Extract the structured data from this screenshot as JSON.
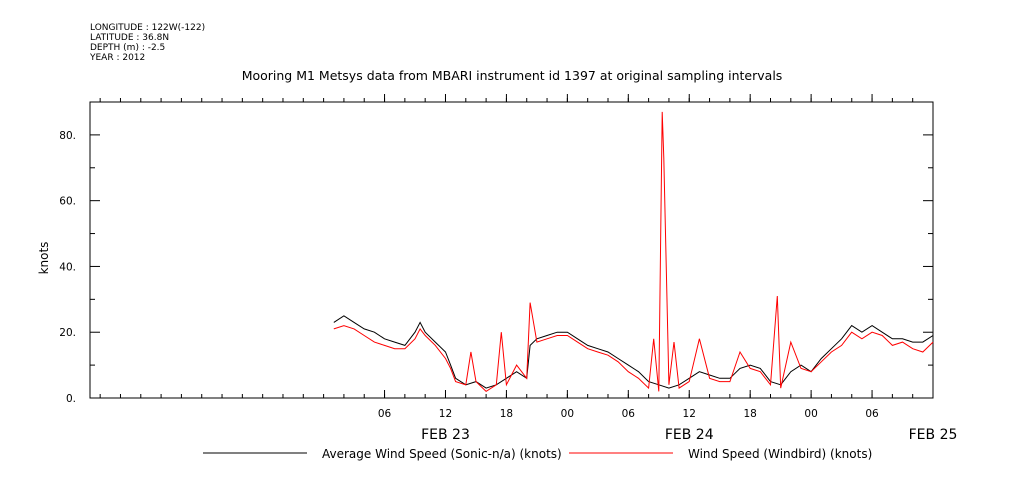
{
  "header": {
    "longitude": "LONGITUDE : 122W(-122)",
    "latitude": "LATITUDE : 36.8N",
    "depth": "DEPTH (m) : -2.5",
    "year": "YEAR : 2012"
  },
  "chart_data": {
    "type": "line",
    "title": "Mooring M1 Metsys data from MBARI instrument id 1397 at original sampling intervals",
    "xlabel": "",
    "ylabel": "knots",
    "xlim": [
      "2012-02-22 01:00",
      "2012-02-25 12:00"
    ],
    "ylim": [
      0,
      90
    ],
    "y_ticks": [
      0,
      20,
      40,
      60,
      80
    ],
    "y_tick_labels": [
      "0.",
      "20.",
      "40.",
      "60.",
      "80."
    ],
    "x_tick_labels": [
      {
        "time": "2012-02-23 06:00",
        "label": "06"
      },
      {
        "time": "2012-02-23 12:00",
        "label": "12"
      },
      {
        "time": "2012-02-23 18:00",
        "label": "18"
      },
      {
        "time": "2012-02-24 00:00",
        "label": "00"
      },
      {
        "time": "2012-02-24 06:00",
        "label": "06"
      },
      {
        "time": "2012-02-24 12:00",
        "label": "12"
      },
      {
        "time": "2012-02-24 18:00",
        "label": "18"
      },
      {
        "time": "2012-02-25 00:00",
        "label": "00"
      },
      {
        "time": "2012-02-25 06:00",
        "label": "06"
      }
    ],
    "day_labels": [
      {
        "time": "2012-02-23 12:00",
        "label": "FEB 23"
      },
      {
        "time": "2012-02-24 12:00",
        "label": "FEB 24"
      },
      {
        "time": "2012-02-25 12:00",
        "label": "FEB 25"
      }
    ],
    "legend_position": "bottom",
    "grid": false,
    "series": [
      {
        "name": "Average Wind Speed (Sonic-n/a) (knots)",
        "color": "#000000",
        "points": [
          [
            "2012-02-23 01:00",
            23
          ],
          [
            "2012-02-23 02:00",
            25
          ],
          [
            "2012-02-23 03:00",
            23
          ],
          [
            "2012-02-23 04:00",
            21
          ],
          [
            "2012-02-23 05:00",
            20
          ],
          [
            "2012-02-23 06:00",
            18
          ],
          [
            "2012-02-23 07:00",
            17
          ],
          [
            "2012-02-23 08:00",
            16
          ],
          [
            "2012-02-23 09:00",
            20
          ],
          [
            "2012-02-23 09:30",
            23
          ],
          [
            "2012-02-23 10:00",
            20
          ],
          [
            "2012-02-23 11:00",
            17
          ],
          [
            "2012-02-23 12:00",
            14
          ],
          [
            "2012-02-23 12:30",
            10
          ],
          [
            "2012-02-23 13:00",
            6
          ],
          [
            "2012-02-23 14:00",
            4
          ],
          [
            "2012-02-23 15:00",
            5
          ],
          [
            "2012-02-23 16:00",
            3
          ],
          [
            "2012-02-23 17:00",
            4
          ],
          [
            "2012-02-23 18:00",
            6
          ],
          [
            "2012-02-23 19:00",
            8
          ],
          [
            "2012-02-23 20:00",
            6
          ],
          [
            "2012-02-23 20:20",
            16
          ],
          [
            "2012-02-23 21:00",
            18
          ],
          [
            "2012-02-23 22:00",
            19
          ],
          [
            "2012-02-23 23:00",
            20
          ],
          [
            "2012-02-24 00:00",
            20
          ],
          [
            "2012-02-24 01:00",
            18
          ],
          [
            "2012-02-24 02:00",
            16
          ],
          [
            "2012-02-24 03:00",
            15
          ],
          [
            "2012-02-24 04:00",
            14
          ],
          [
            "2012-02-24 05:00",
            12
          ],
          [
            "2012-02-24 06:00",
            10
          ],
          [
            "2012-02-24 07:00",
            8
          ],
          [
            "2012-02-24 08:00",
            5
          ],
          [
            "2012-02-24 09:00",
            4
          ],
          [
            "2012-02-24 10:00",
            3
          ],
          [
            "2012-02-24 11:00",
            4
          ],
          [
            "2012-02-24 12:00",
            6
          ],
          [
            "2012-02-24 13:00",
            8
          ],
          [
            "2012-02-24 14:00",
            7
          ],
          [
            "2012-02-24 15:00",
            6
          ],
          [
            "2012-02-24 16:00",
            6
          ],
          [
            "2012-02-24 17:00",
            9
          ],
          [
            "2012-02-24 18:00",
            10
          ],
          [
            "2012-02-24 19:00",
            9
          ],
          [
            "2012-02-24 20:00",
            5
          ],
          [
            "2012-02-24 21:00",
            4
          ],
          [
            "2012-02-24 22:00",
            8
          ],
          [
            "2012-02-24 23:00",
            10
          ],
          [
            "2012-02-25 00:00",
            8
          ],
          [
            "2012-02-25 01:00",
            12
          ],
          [
            "2012-02-25 02:00",
            15
          ],
          [
            "2012-02-25 03:00",
            18
          ],
          [
            "2012-02-25 04:00",
            22
          ],
          [
            "2012-02-25 05:00",
            20
          ],
          [
            "2012-02-25 06:00",
            22
          ],
          [
            "2012-02-25 07:00",
            20
          ],
          [
            "2012-02-25 08:00",
            18
          ],
          [
            "2012-02-25 09:00",
            18
          ],
          [
            "2012-02-25 10:00",
            17
          ],
          [
            "2012-02-25 11:00",
            17
          ],
          [
            "2012-02-25 12:00",
            19
          ]
        ]
      },
      {
        "name": "Wind Speed (Windbird) (knots)",
        "color": "#ff0000",
        "points": [
          [
            "2012-02-23 01:00",
            21
          ],
          [
            "2012-02-23 02:00",
            22
          ],
          [
            "2012-02-23 03:00",
            21
          ],
          [
            "2012-02-23 04:00",
            19
          ],
          [
            "2012-02-23 05:00",
            17
          ],
          [
            "2012-02-23 06:00",
            16
          ],
          [
            "2012-02-23 07:00",
            15
          ],
          [
            "2012-02-23 08:00",
            15
          ],
          [
            "2012-02-23 09:00",
            18
          ],
          [
            "2012-02-23 09:30",
            21
          ],
          [
            "2012-02-23 10:00",
            19
          ],
          [
            "2012-02-23 11:00",
            16
          ],
          [
            "2012-02-23 12:00",
            12
          ],
          [
            "2012-02-23 12:30",
            9
          ],
          [
            "2012-02-23 13:00",
            5
          ],
          [
            "2012-02-23 14:00",
            4
          ],
          [
            "2012-02-23 14:30",
            14
          ],
          [
            "2012-02-23 15:00",
            5
          ],
          [
            "2012-02-23 16:00",
            2
          ],
          [
            "2012-02-23 17:00",
            4
          ],
          [
            "2012-02-23 17:30",
            20
          ],
          [
            "2012-02-23 18:00",
            4
          ],
          [
            "2012-02-23 19:00",
            10
          ],
          [
            "2012-02-23 20:00",
            6
          ],
          [
            "2012-02-23 20:20",
            29
          ],
          [
            "2012-02-23 21:00",
            17
          ],
          [
            "2012-02-23 22:00",
            18
          ],
          [
            "2012-02-23 23:00",
            19
          ],
          [
            "2012-02-24 00:00",
            19
          ],
          [
            "2012-02-24 01:00",
            17
          ],
          [
            "2012-02-24 02:00",
            15
          ],
          [
            "2012-02-24 03:00",
            14
          ],
          [
            "2012-02-24 04:00",
            13
          ],
          [
            "2012-02-24 05:00",
            11
          ],
          [
            "2012-02-24 06:00",
            8
          ],
          [
            "2012-02-24 07:00",
            6
          ],
          [
            "2012-02-24 08:00",
            3
          ],
          [
            "2012-02-24 08:30",
            18
          ],
          [
            "2012-02-24 09:00",
            2
          ],
          [
            "2012-02-24 09:20",
            87
          ],
          [
            "2012-02-24 09:30",
            73
          ],
          [
            "2012-02-24 10:00",
            4
          ],
          [
            "2012-02-24 10:30",
            17
          ],
          [
            "2012-02-24 11:00",
            3
          ],
          [
            "2012-02-24 12:00",
            5
          ],
          [
            "2012-02-24 13:00",
            18
          ],
          [
            "2012-02-24 14:00",
            6
          ],
          [
            "2012-02-24 15:00",
            5
          ],
          [
            "2012-02-24 16:00",
            5
          ],
          [
            "2012-02-24 17:00",
            14
          ],
          [
            "2012-02-24 18:00",
            9
          ],
          [
            "2012-02-24 19:00",
            8
          ],
          [
            "2012-02-24 20:00",
            4
          ],
          [
            "2012-02-24 20:40",
            31
          ],
          [
            "2012-02-24 21:00",
            3
          ],
          [
            "2012-02-24 22:00",
            17
          ],
          [
            "2012-02-24 23:00",
            9
          ],
          [
            "2012-02-25 00:00",
            8
          ],
          [
            "2012-02-25 01:00",
            11
          ],
          [
            "2012-02-25 02:00",
            14
          ],
          [
            "2012-02-25 03:00",
            16
          ],
          [
            "2012-02-25 04:00",
            20
          ],
          [
            "2012-02-25 05:00",
            18
          ],
          [
            "2012-02-25 06:00",
            20
          ],
          [
            "2012-02-25 07:00",
            19
          ],
          [
            "2012-02-25 08:00",
            16
          ],
          [
            "2012-02-25 09:00",
            17
          ],
          [
            "2012-02-25 10:00",
            15
          ],
          [
            "2012-02-25 11:00",
            14
          ],
          [
            "2012-02-25 12:00",
            17
          ]
        ]
      }
    ]
  }
}
